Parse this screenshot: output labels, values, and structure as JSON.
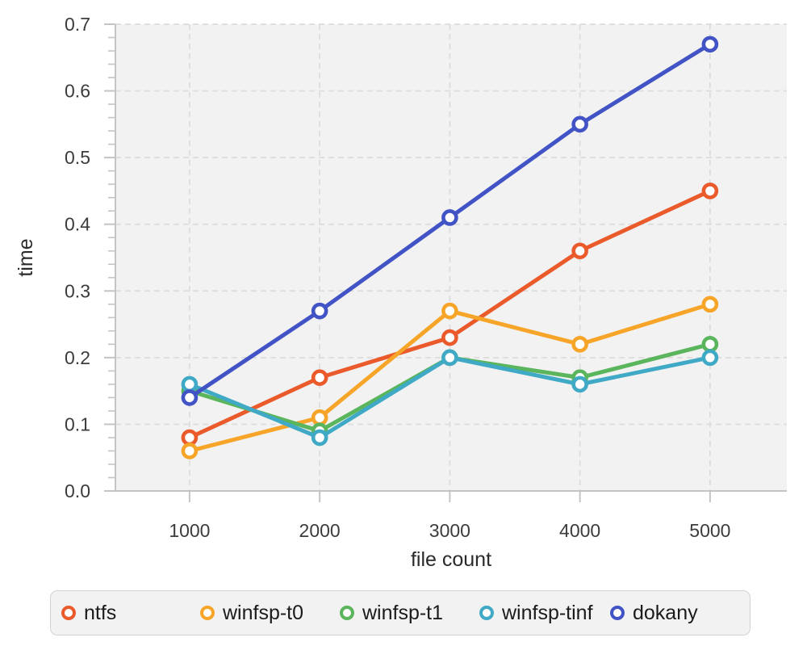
{
  "figure": {
    "background": "#ffffff",
    "plot_background": "#f2f2f2",
    "grid_color": "#dcdcdc",
    "axis_color": "#c4c4c4",
    "tick_label_color": "#3c3c3c",
    "axis_title_color": "#2a2a2a",
    "legend_background": "#f2f2f2",
    "legend_border": "#d2d2d2",
    "legend_text_color": "#1b1b1b"
  },
  "chart_data": {
    "type": "line",
    "title": "",
    "xlabel": "file count",
    "ylabel": "time",
    "x": [
      1000,
      2000,
      3000,
      4000,
      5000
    ],
    "series": [
      {
        "name": "ntfs",
        "color": "#ea5a2b",
        "values": [
          0.08,
          0.17,
          0.23,
          0.36,
          0.45
        ]
      },
      {
        "name": "winfsp-t0",
        "color": "#f7a529",
        "values": [
          0.06,
          0.11,
          0.27,
          0.22,
          0.28
        ]
      },
      {
        "name": "winfsp-t1",
        "color": "#5ab55c",
        "values": [
          0.15,
          0.09,
          0.2,
          0.17,
          0.22
        ]
      },
      {
        "name": "winfsp-tinf",
        "color": "#3fa9c6",
        "values": [
          0.16,
          0.08,
          0.2,
          0.16,
          0.2
        ]
      },
      {
        "name": "dokany",
        "color": "#4254c5",
        "values": [
          0.14,
          0.27,
          0.41,
          0.55,
          0.67
        ]
      }
    ],
    "xlim": [
      430,
      5590
    ],
    "ylim": [
      0.0,
      0.7
    ],
    "x_ticks": [
      1000,
      2000,
      3000,
      4000,
      5000
    ],
    "y_ticks": [
      0.0,
      0.1,
      0.2,
      0.3,
      0.4,
      0.5,
      0.6,
      0.7
    ],
    "y_minor_tick_step": 0.02,
    "grid": true,
    "grid_style": "dashed",
    "marker_style": "open-circle",
    "legend_position": "bottom"
  }
}
